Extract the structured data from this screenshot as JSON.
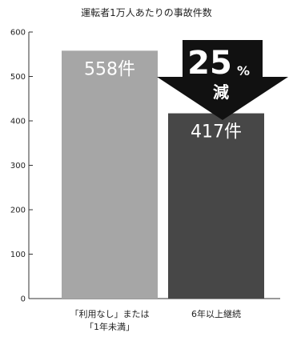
{
  "chart_data": {
    "type": "bar",
    "title": "運転者1万人あたりの事故件数",
    "categories": [
      [
        "「利用なし」または",
        "「1年未満」"
      ],
      [
        "6年以上継続"
      ]
    ],
    "values": [
      558,
      417
    ],
    "value_labels": [
      "558件",
      "417件"
    ],
    "ylim": [
      0,
      600
    ],
    "yticks": [
      0,
      100,
      200,
      300,
      400,
      500,
      600
    ],
    "bar_colors": [
      "#a6a6a6",
      "#474747"
    ],
    "grid": false,
    "annotation": {
      "number": "25",
      "symbol": "%",
      "word": "減",
      "color": "#111111"
    }
  }
}
